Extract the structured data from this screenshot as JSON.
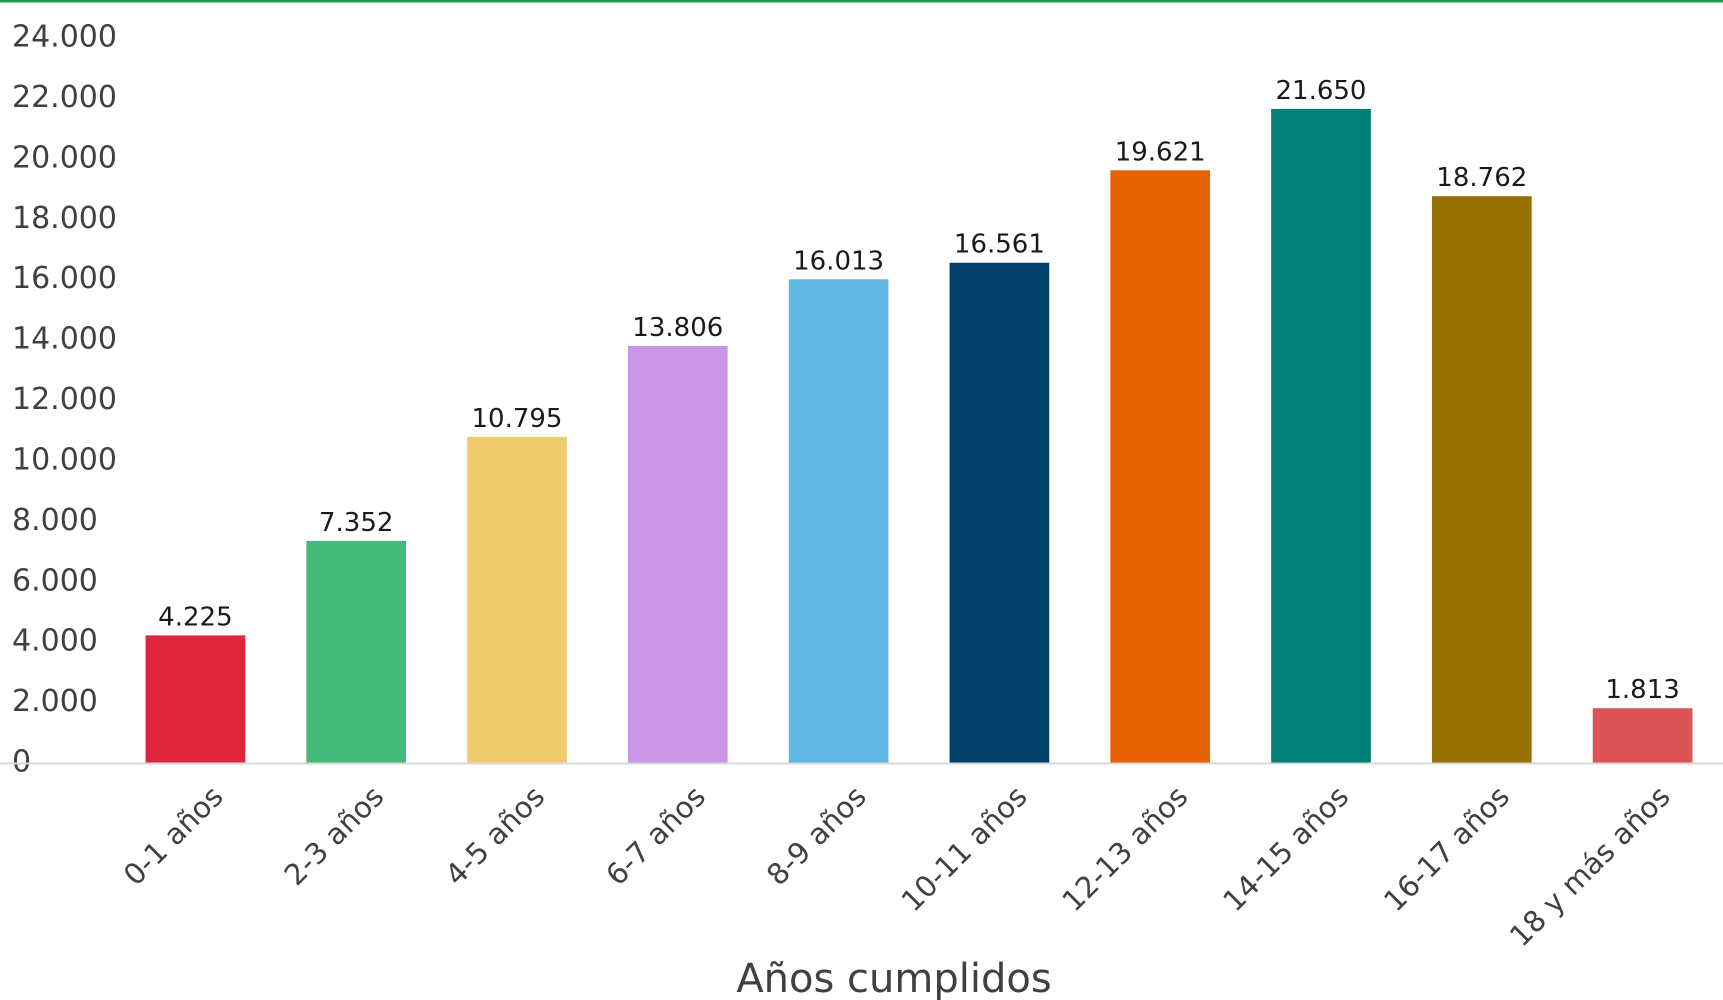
{
  "chart_data": {
    "type": "bar",
    "title": "",
    "xlabel": "Años cumplidos",
    "ylabel": "",
    "ylim": [
      0,
      24000
    ],
    "y_ticks": [
      0,
      2000,
      4000,
      6000,
      8000,
      10000,
      12000,
      14000,
      16000,
      18000,
      20000,
      22000,
      24000
    ],
    "y_tick_labels": [
      "0",
      "2.000",
      "4.000",
      "6.000",
      "8.000",
      "10.000",
      "12.000",
      "14.000",
      "16.000",
      "18.000",
      "20.000",
      "22.000",
      "24.000"
    ],
    "grid": false,
    "legend": "none",
    "categories": [
      "0-1 años",
      "2-3 años",
      "4-5 años",
      "6-7 años",
      "8-9 años",
      "10-11 años",
      "12-13 años",
      "14-15 años",
      "16-17 años",
      "18 y más años"
    ],
    "values": [
      4225,
      7352,
      10795,
      13806,
      16013,
      16561,
      19621,
      21650,
      18762,
      1813
    ],
    "value_labels": [
      "4.225",
      "7.352",
      "10.795",
      "13.806",
      "16.013",
      "16.561",
      "19.621",
      "21.650",
      "18.762",
      "1.813"
    ],
    "colors": [
      "#E0263E",
      "#43B97A",
      "#EFCB6E",
      "#C997E6",
      "#63B8E6",
      "#00416B",
      "#E66100",
      "#008076",
      "#967000",
      "#DC5455"
    ],
    "top_rule_color": "#1E9A50",
    "baseline_color": "#D9D9D9"
  }
}
